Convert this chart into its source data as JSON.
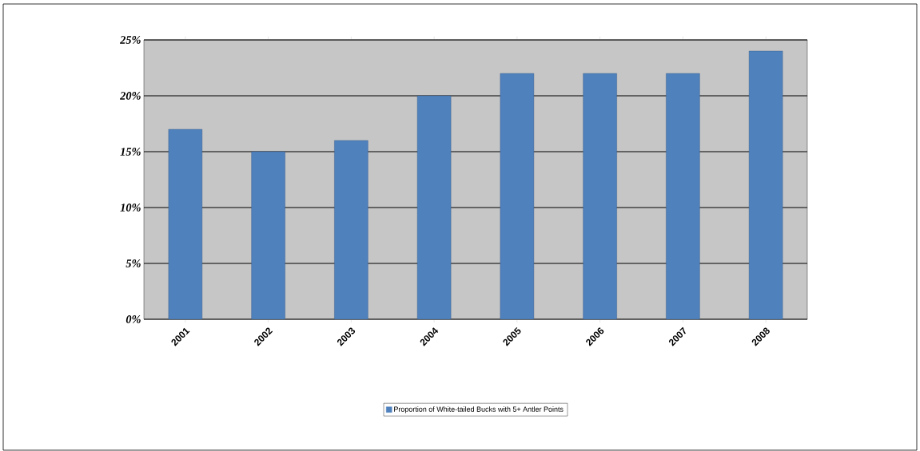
{
  "chart_data": {
    "type": "bar",
    "categories": [
      "2001",
      "2002",
      "2003",
      "2004",
      "2005",
      "2006",
      "2007",
      "2008"
    ],
    "series": [
      {
        "name": "Proportion of White-tailed Bucks with 5+ Antler Points",
        "color": "#4f81bd",
        "values": [
          17,
          15,
          16,
          20,
          22,
          22,
          22,
          24
        ]
      }
    ],
    "ylim": [
      0,
      25
    ],
    "yticks": [
      {
        "value": 0,
        "label": "0%"
      },
      {
        "value": 5,
        "label": "5%"
      },
      {
        "value": 10,
        "label": "10%"
      },
      {
        "value": 15,
        "label": "15%"
      },
      {
        "value": 20,
        "label": "20%"
      },
      {
        "value": 25,
        "label": "25%"
      }
    ],
    "grid": "y",
    "legend": "bottom"
  }
}
